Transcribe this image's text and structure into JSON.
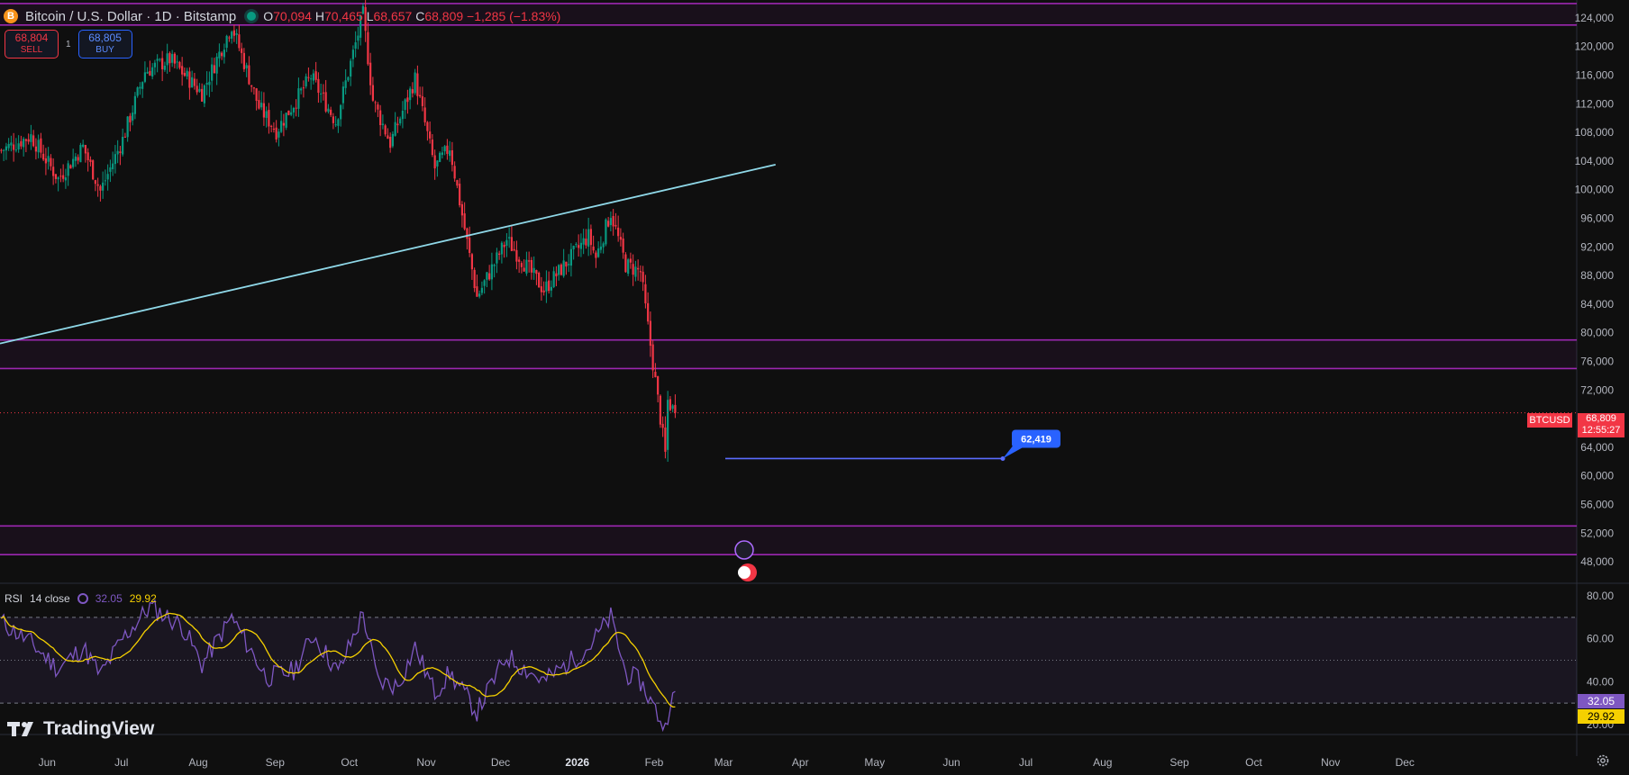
{
  "header": {
    "symbol_icon": "B",
    "title": "Bitcoin / U.S. Dollar · 1D · Bitstamp",
    "o_key": "O",
    "o_val": "70,094",
    "h_key": "H",
    "h_val": "70,465",
    "l_key": "L",
    "l_val": "68,657",
    "c_key": "C",
    "c_val": "68,809",
    "change": "−1,285 (−1.83%)"
  },
  "trade": {
    "sell_price": "68,804",
    "sell_label": "SELL",
    "spread": "1",
    "buy_price": "68,805",
    "buy_label": "BUY"
  },
  "price_axis": {
    "ticks": [
      "124,000",
      "120,000",
      "116,000",
      "112,000",
      "108,000",
      "104,000",
      "100,000",
      "96,000",
      "92,000",
      "88,000",
      "84,000",
      "80,000",
      "76,000",
      "72,000",
      "64,000",
      "60,000",
      "56,000",
      "52,000",
      "48,000"
    ],
    "symbol_tag": "BTCUSD",
    "last_price": "68,809",
    "countdown": "12:55:27"
  },
  "time_axis": {
    "labels": [
      "Jun",
      "Jul",
      "Aug",
      "Sep",
      "Oct",
      "Nov",
      "Dec",
      "2026",
      "Feb",
      "Mar",
      "Apr",
      "May",
      "Jun",
      "Jul",
      "Aug",
      "Sep",
      "Oct",
      "Nov",
      "Dec"
    ]
  },
  "annotation": {
    "label": "62,419"
  },
  "rsi": {
    "name": "RSI",
    "params": "14 close",
    "value": "32.05",
    "ma_value": "29.92",
    "axis": [
      "80.00",
      "60.00",
      "40.00",
      "20.00"
    ]
  },
  "brand": {
    "name": "TradingView"
  },
  "colors": {
    "background": "#0f0f0f",
    "up": "#089981",
    "down": "#f23645",
    "zone": "#9c27b0",
    "trendline": "#8fd8e8",
    "rsi": "#7e57c2",
    "rsi_ma": "#f5d000",
    "annotation": "#2962ff"
  },
  "chart_data": {
    "type": "candlestick",
    "ylim": [
      46000,
      126500
    ],
    "zones": [
      [
        123000,
        126000
      ],
      [
        75000,
        79000
      ],
      [
        49000,
        53000
      ]
    ],
    "trendline": {
      "from": [
        "2025-05-13",
        78500
      ],
      "to": [
        "2026-03-22",
        103500
      ]
    },
    "price_line": 68809,
    "horizontal_ray": 62419,
    "anchors": [
      [
        "2025-05-13",
        105500
      ],
      [
        "2025-05-25",
        107500
      ],
      [
        "2025-06-05",
        101500
      ],
      [
        "2025-06-15",
        106000
      ],
      [
        "2025-06-22",
        99800
      ],
      [
        "2025-07-01",
        107000
      ],
      [
        "2025-07-10",
        116500
      ],
      [
        "2025-07-20",
        118200
      ],
      [
        "2025-08-02",
        113500
      ],
      [
        "2025-08-14",
        123000
      ],
      [
        "2025-08-25",
        111500
      ],
      [
        "2025-09-01",
        108200
      ],
      [
        "2025-09-15",
        115800
      ],
      [
        "2025-09-25",
        109500
      ],
      [
        "2025-10-06",
        124500
      ],
      [
        "2025-10-10",
        112500
      ],
      [
        "2025-10-17",
        106500
      ],
      [
        "2025-10-27",
        115500
      ],
      [
        "2025-11-04",
        103000
      ],
      [
        "2025-11-10",
        106000
      ],
      [
        "2025-11-21",
        85000
      ],
      [
        "2025-12-03",
        93000
      ],
      [
        "2025-12-18",
        86000
      ],
      [
        "2026-01-05",
        93500
      ],
      [
        "2026-01-08",
        90500
      ],
      [
        "2026-01-14",
        96800
      ],
      [
        "2026-01-20",
        89500
      ],
      [
        "2026-01-26",
        88500
      ],
      [
        "2026-02-05",
        63000
      ],
      [
        "2026-02-06",
        70500
      ],
      [
        "2026-02-09",
        68809
      ]
    ],
    "rsi_anchors": [
      [
        "2025-05-13",
        68
      ],
      [
        "2025-05-25",
        58
      ],
      [
        "2025-06-05",
        46
      ],
      [
        "2025-06-15",
        56
      ],
      [
        "2025-06-22",
        43
      ],
      [
        "2025-07-01",
        60
      ],
      [
        "2025-07-12",
        75
      ],
      [
        "2025-07-25",
        66
      ],
      [
        "2025-08-02",
        48
      ],
      [
        "2025-08-14",
        70
      ],
      [
        "2025-08-28",
        42
      ],
      [
        "2025-09-08",
        45
      ],
      [
        "2025-09-16",
        62
      ],
      [
        "2025-09-26",
        44
      ],
      [
        "2025-10-06",
        72
      ],
      [
        "2025-10-12",
        40
      ],
      [
        "2025-10-20",
        38
      ],
      [
        "2025-10-27",
        56
      ],
      [
        "2025-11-04",
        35
      ],
      [
        "2025-11-10",
        44
      ],
      [
        "2025-11-21",
        26
      ],
      [
        "2025-12-03",
        52
      ],
      [
        "2025-12-18",
        40
      ],
      [
        "2026-01-05",
        56
      ],
      [
        "2026-01-14",
        70
      ],
      [
        "2026-01-20",
        44
      ],
      [
        "2026-01-26",
        40
      ],
      [
        "2026-02-05",
        18
      ],
      [
        "2026-02-07",
        32
      ],
      [
        "2026-02-09",
        32
      ]
    ]
  }
}
